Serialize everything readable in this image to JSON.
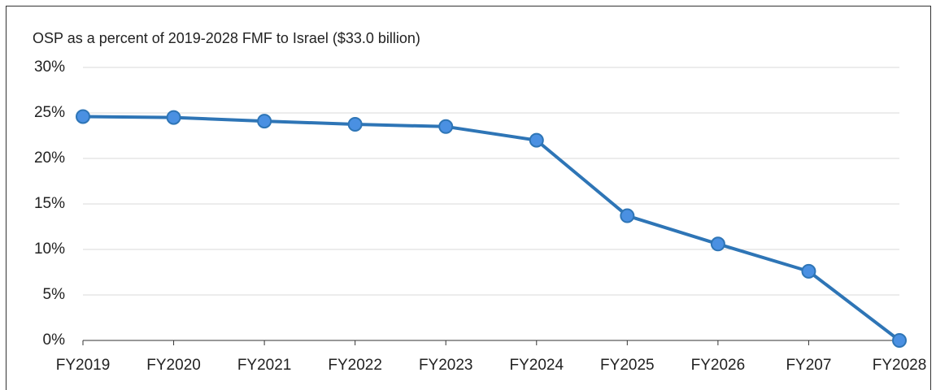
{
  "chart_data": {
    "type": "line",
    "title": "OSP as a percent of 2019-2028 FMF to Israel ($33.0 billion)",
    "categories": [
      "FY2019",
      "FY2020",
      "FY2021",
      "FY2022",
      "FY2023",
      "FY2024",
      "FY2025",
      "FY2026",
      "FY207",
      "FY2028"
    ],
    "series": [
      {
        "name": "OSP",
        "color": "#2e75b6",
        "values": [
          24.6,
          24.5,
          24.1,
          23.75,
          23.5,
          22.0,
          13.7,
          10.6,
          7.6,
          0
        ]
      }
    ],
    "ylim": [
      0,
      30
    ],
    "yticks": [
      {
        "value": 0,
        "label": "0%"
      },
      {
        "value": 5,
        "label": "5%"
      },
      {
        "value": 10,
        "label": "10%"
      },
      {
        "value": 15,
        "label": "15%"
      },
      {
        "value": 20,
        "label": "20%"
      },
      {
        "value": 25,
        "label": "25%"
      },
      {
        "value": 30,
        "label": "30%"
      }
    ],
    "grid": true
  }
}
